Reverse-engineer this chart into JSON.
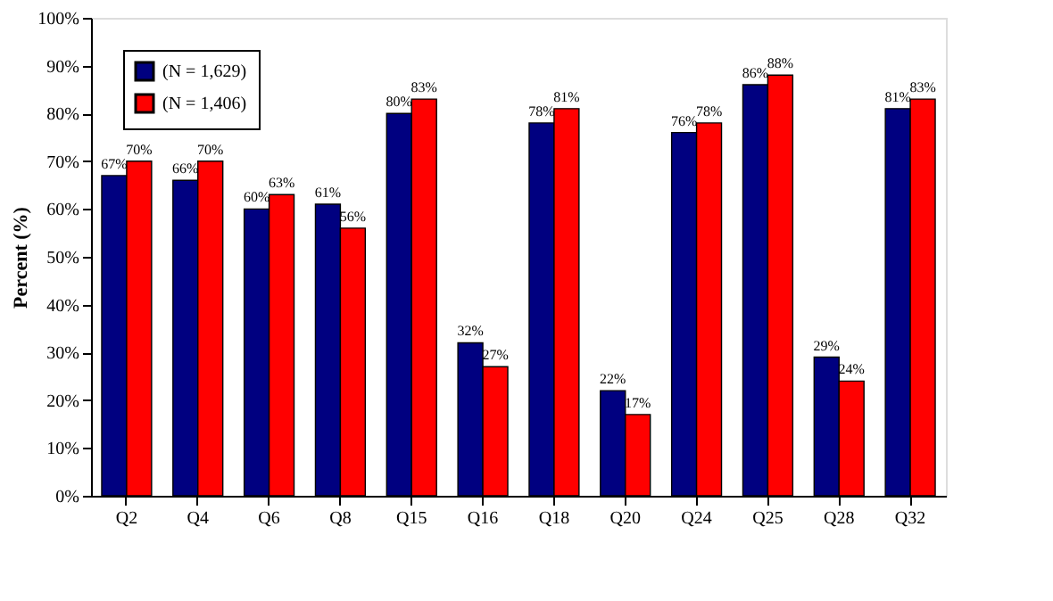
{
  "chart_data": {
    "type": "bar",
    "ylabel": "Percent (%)",
    "categories": [
      "Q2",
      "Q4",
      "Q6",
      "Q8",
      "Q15",
      "Q16",
      "Q18",
      "Q20",
      "Q24",
      "Q25",
      "Q28",
      "Q32"
    ],
    "series": [
      {
        "name": "(N = 1,629)",
        "color": "#000080",
        "values": [
          67,
          66,
          60,
          61,
          80,
          32,
          78,
          22,
          76,
          86,
          29,
          81
        ],
        "value_labels": [
          "67%",
          "66%",
          "60%",
          "61%",
          "80%",
          "32%",
          "78%",
          "22%",
          "76%",
          "86%",
          "29%",
          "81%"
        ]
      },
      {
        "name": "(N = 1,406)",
        "color": "#ff0000",
        "values": [
          70,
          70,
          63,
          56,
          83,
          27,
          81,
          17,
          78,
          88,
          24,
          83
        ],
        "value_labels": [
          "70%",
          "70%",
          "63%",
          "56%",
          "83%",
          "27%",
          "81%",
          "17%",
          "78%",
          "88%",
          "24%",
          "83%"
        ]
      }
    ],
    "ylim": [
      0,
      100
    ],
    "yticks": [
      {
        "value": 0,
        "label": "0%"
      },
      {
        "value": 10,
        "label": "10%"
      },
      {
        "value": 20,
        "label": "20%"
      },
      {
        "value": 30,
        "label": "30%"
      },
      {
        "value": 40,
        "label": "40%"
      },
      {
        "value": 50,
        "label": "50%"
      },
      {
        "value": 60,
        "label": "60%"
      },
      {
        "value": 70,
        "label": "70%"
      },
      {
        "value": 80,
        "label": "80%"
      },
      {
        "value": 90,
        "label": "90%"
      },
      {
        "value": 100,
        "label": "100%"
      }
    ],
    "grid": false,
    "legend": "top left"
  }
}
